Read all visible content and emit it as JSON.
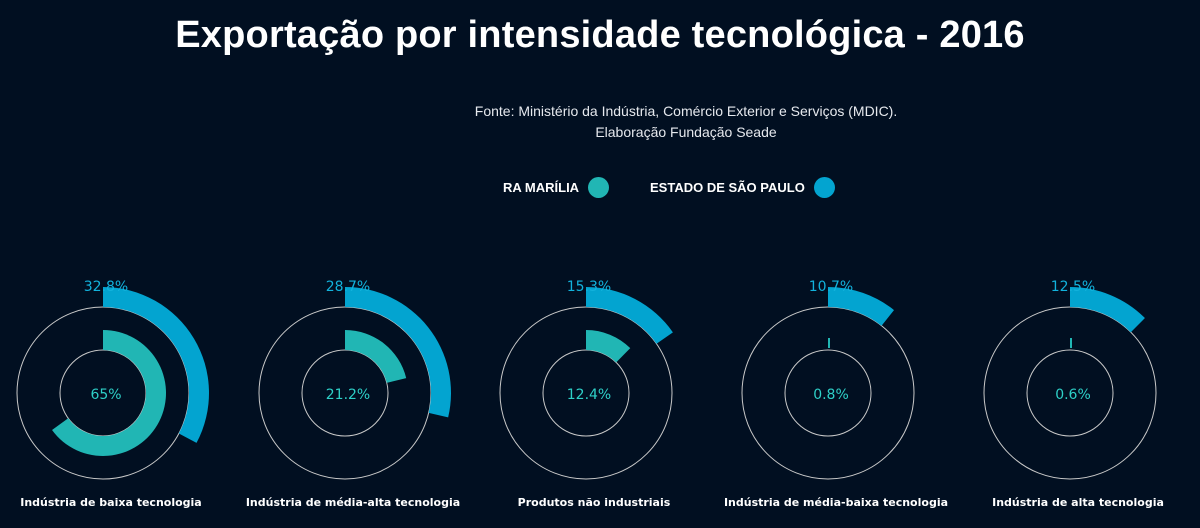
{
  "page": {
    "background": "#010f21"
  },
  "chart_data": {
    "type": "radial-bar",
    "title": "Exportação por intensidade tecnológica - 2016",
    "source_lines": [
      "Fonte: Ministério da Indústria, Comércio Exterior e Serviços (MDIC).",
      "Elaboração Fundação Seade"
    ],
    "legend": [
      {
        "name": "RA MARÍLIA",
        "color": "#21b6b4"
      },
      {
        "name": "ESTADO DE SÃO PAULO",
        "color": "#03a4d0"
      }
    ],
    "legend_position": "top-center",
    "value_range": [
      0,
      100
    ],
    "categories": [
      "Indústria de baixa tecnologia",
      "Indústria de média-alta tecnologia",
      "Produtos não industriais",
      "Indústria de média-baixa tecnologia",
      "Indústria de alta tecnologia"
    ],
    "series": [
      {
        "name": "ESTADO DE SÃO PAULO",
        "ring": "outer",
        "color": "#03a4d0",
        "values": [
          32.8,
          28.7,
          15.3,
          10.7,
          12.5
        ],
        "labels": [
          "32.8%",
          "28.7%",
          "15.3%",
          "10.7%",
          "12.5%"
        ]
      },
      {
        "name": "RA MARÍLIA",
        "ring": "inner",
        "color": "#21b6b4",
        "values": [
          65,
          21.2,
          12.4,
          0.8,
          0.6
        ],
        "labels": [
          "65%",
          "21.2%",
          "12.4%",
          "0.8%",
          "0.6%"
        ]
      }
    ],
    "guide_color": "#c9c9c9"
  }
}
